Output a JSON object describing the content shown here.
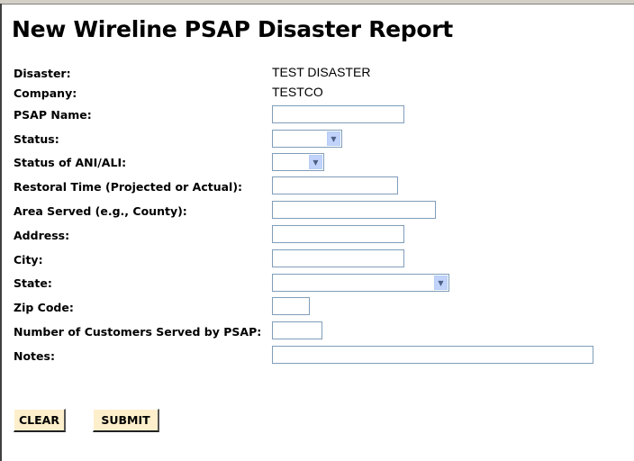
{
  "title": "New Wireline PSAP Disaster Report",
  "fields": {
    "disaster": {
      "label": "Disaster:",
      "value": "TEST DISASTER"
    },
    "company": {
      "label": "Company:",
      "value": "TESTCO"
    },
    "psap_name": {
      "label": "PSAP Name:",
      "value": ""
    },
    "status": {
      "label": "Status:",
      "value": ""
    },
    "ani_ali": {
      "label": "Status of ANI/ALI:",
      "value": ""
    },
    "restoral": {
      "label": "Restoral Time (Projected or Actual):",
      "value": ""
    },
    "area": {
      "label": "Area Served (e.g., County):",
      "value": ""
    },
    "address": {
      "label": "Address:",
      "value": ""
    },
    "city": {
      "label": "City:",
      "value": ""
    },
    "state": {
      "label": "State:",
      "value": ""
    },
    "zip": {
      "label": "Zip Code:",
      "value": ""
    },
    "customers": {
      "label": "Number of Customers Served by PSAP:",
      "value": ""
    },
    "notes": {
      "label": "Notes:",
      "value": ""
    }
  },
  "buttons": {
    "clear": "CLEAR",
    "submit": "SUBMIT"
  },
  "colors": {
    "button_bg": "#fdefcb",
    "input_border": "#7f9db9"
  }
}
